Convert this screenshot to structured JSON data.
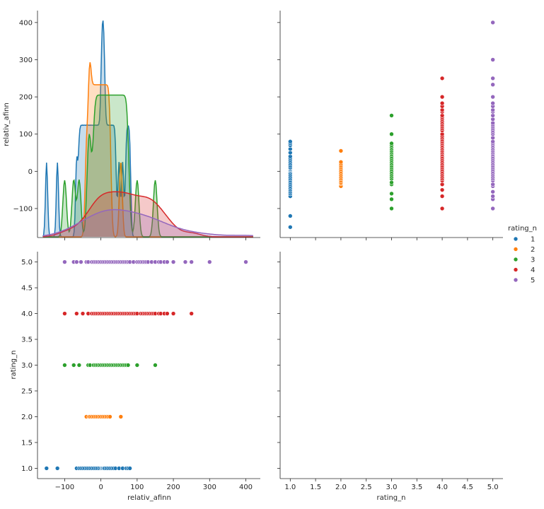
{
  "chart_data": {
    "type": "scatter",
    "title": "",
    "legend": {
      "title": "rating_n",
      "placement": "right",
      "entries": [
        {
          "label": "1",
          "color": "#1f77b4"
        },
        {
          "label": "2",
          "color": "#ff7f0e"
        },
        {
          "label": "3",
          "color": "#2ca02c"
        },
        {
          "label": "4",
          "color": "#d62728"
        },
        {
          "label": "5",
          "color": "#9467bd"
        }
      ]
    },
    "variables": [
      "relativ_afinn",
      "rating_n"
    ],
    "axes": {
      "relativ_afinn": {
        "label": "relativ_afinn",
        "lim": [
          -175,
          440
        ],
        "ticks": [
          -100,
          0,
          100,
          200,
          300,
          400
        ],
        "tick_labels": [
          "−100",
          "0",
          "100",
          "200",
          "300",
          "400"
        ]
      },
      "relativ_afinn_y": {
        "label": "relativ_afinn",
        "lim": [
          -178,
          432
        ],
        "ticks": [
          -100,
          0,
          100,
          200,
          300,
          400
        ],
        "tick_labels": [
          "−100",
          "0",
          "100",
          "200",
          "300",
          "400"
        ]
      },
      "rating_n": {
        "label": "rating_n",
        "lim": [
          0.8,
          5.2
        ],
        "ticks": [
          1.0,
          1.5,
          2.0,
          2.5,
          3.0,
          3.5,
          4.0,
          4.5,
          5.0
        ],
        "tick_labels": [
          "1.0",
          "1.5",
          "2.0",
          "2.5",
          "3.0",
          "3.5",
          "4.0",
          "4.5",
          "5.0"
        ]
      }
    },
    "series": [
      {
        "name": "1",
        "rating": 1,
        "color": "#1f77b4",
        "afinn": [
          -150,
          -120,
          -67,
          -60,
          -55,
          -50,
          -45,
          -40,
          -35,
          -30,
          -25,
          -20,
          -15,
          -10,
          -5,
          0,
          3,
          5,
          8,
          10,
          15,
          20,
          25,
          30,
          35,
          40,
          50,
          60,
          70,
          75,
          80
        ]
      },
      {
        "name": "2",
        "rating": 2,
        "color": "#ff7f0e",
        "afinn": [
          -40,
          -33,
          -30,
          -25,
          -20,
          -15,
          -10,
          -5,
          0,
          5,
          10,
          15,
          20,
          25,
          55
        ]
      },
      {
        "name": "3",
        "rating": 3,
        "color": "#2ca02c",
        "afinn": [
          -100,
          -75,
          -60,
          -35,
          -30,
          -20,
          -15,
          -10,
          -5,
          0,
          5,
          10,
          15,
          20,
          25,
          30,
          35,
          40,
          45,
          50,
          55,
          60,
          65,
          70,
          75,
          100,
          150
        ]
      },
      {
        "name": "4",
        "rating": 4,
        "color": "#d62728",
        "afinn": [
          -100,
          -67,
          -50,
          -35,
          -25,
          -20,
          -15,
          -10,
          -5,
          0,
          5,
          10,
          15,
          20,
          25,
          30,
          35,
          40,
          45,
          50,
          55,
          60,
          65,
          70,
          75,
          80,
          85,
          90,
          95,
          100,
          110,
          115,
          120,
          125,
          130,
          135,
          140,
          145,
          150,
          160,
          165,
          175,
          183,
          200,
          250
        ]
      },
      {
        "name": "5",
        "rating": 5,
        "color": "#9467bd",
        "afinn": [
          -100,
          -75,
          -67,
          -55,
          -40,
          -35,
          -25,
          -20,
          -15,
          -10,
          -5,
          0,
          5,
          10,
          15,
          20,
          25,
          30,
          35,
          40,
          45,
          50,
          55,
          60,
          65,
          70,
          75,
          80,
          90,
          100,
          105,
          110,
          115,
          120,
          125,
          130,
          140,
          150,
          160,
          165,
          175,
          183,
          200,
          233,
          250,
          300,
          400
        ]
      }
    ],
    "kde": [
      {
        "name": "1",
        "color": "#1f77b4",
        "peak_x": 0,
        "peak_y": 405,
        "width": 3
      },
      {
        "name": "2",
        "color": "#ff7f0e",
        "peak_x": 0,
        "peak_y": 293,
        "width": 4
      },
      {
        "name": "3",
        "color": "#2ca02c",
        "peak_x": 0,
        "peak_y": 205,
        "width": 5
      },
      {
        "name": "4",
        "color": "#d62728",
        "peak_x": 8,
        "peak_y": -55,
        "width": 25
      },
      {
        "name": "5",
        "color": "#9467bd",
        "peak_x": 20,
        "peak_y": -103,
        "width": 45
      }
    ]
  }
}
